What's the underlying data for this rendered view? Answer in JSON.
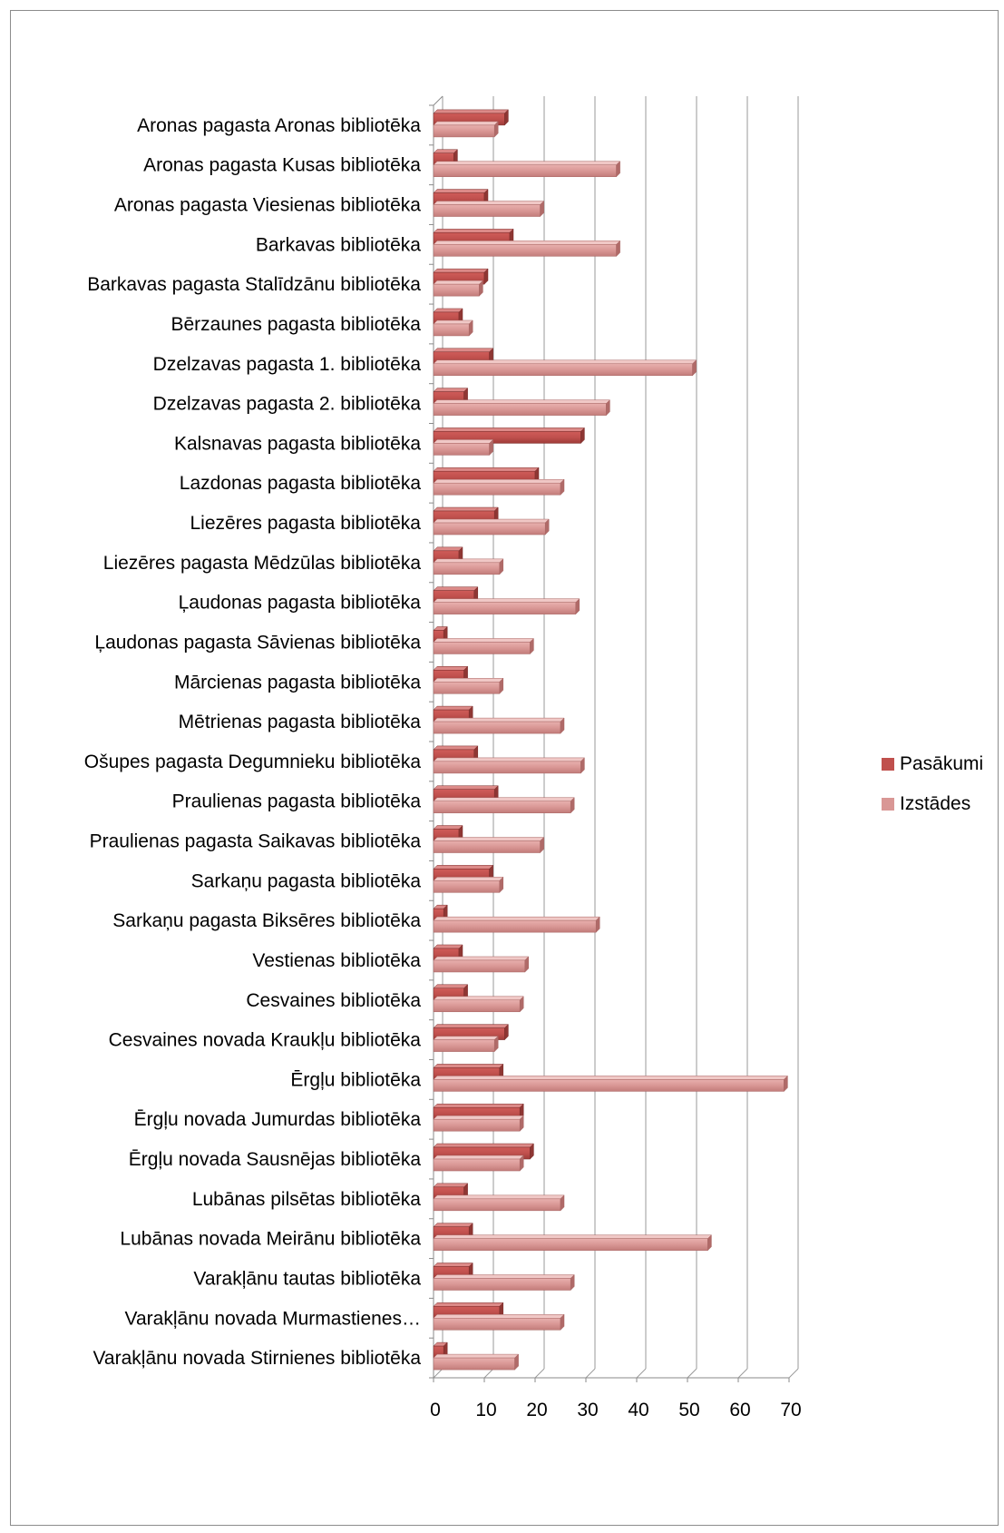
{
  "chart_data": {
    "type": "bar",
    "orientation": "horizontal",
    "categories": [
      "Aronas pagasta Aronas bibliotēka",
      "Aronas pagasta Kusas bibliotēka",
      "Aronas pagasta Viesienas bibliotēka",
      "Barkavas bibliotēka",
      "Barkavas pagasta Stalīdzānu bibliotēka",
      "Bērzaunes pagasta bibliotēka",
      "Dzelzavas pagasta 1. bibliotēka",
      "Dzelzavas pagasta 2. bibliotēka",
      "Kalsnavas pagasta bibliotēka",
      "Lazdonas pagasta bibliotēka",
      "Liezēres pagasta bibliotēka",
      "Liezēres pagasta Mēdzūlas bibliotēka",
      "Ļaudonas pagasta bibliotēka",
      "Ļaudonas pagasta Sāvienas bibliotēka",
      "Mārcienas pagasta bibliotēka",
      "Mētrienas pagasta bibliotēka",
      "Ošupes pagasta Degumnieku bibliotēka",
      "Praulienas pagasta bibliotēka",
      "Praulienas pagasta  Saikavas bibliotēka",
      "Sarkaņu pagasta bibliotēka",
      "Sarkaņu pagasta Biksēres bibliotēka",
      "Vestienas  bibliotēka",
      "Cesvaines bibliotēka",
      "Cesvaines novada Kraukļu bibliotēka",
      "Ērgļu  bibliotēka",
      "Ērgļu novada Jumurdas bibliotēka",
      "Ērgļu novada Sausnējas bibliotēka",
      "Lubānas pilsētas bibliotēka",
      "Lubānas novada Meirānu bibliotēka",
      "Varakļānu  tautas bibliotēka",
      "Varakļānu novada Murmastienes…",
      "Varakļānu novada Stirnienes bibliotēka"
    ],
    "series": [
      {
        "name": "Pasākumi",
        "color": "#c0504d",
        "values": [
          14,
          4,
          10,
          15,
          10,
          5,
          11,
          6,
          29,
          20,
          12,
          5,
          8,
          2,
          6,
          7,
          8,
          12,
          5,
          11,
          2,
          5,
          6,
          14,
          13,
          17,
          19,
          6,
          7,
          7,
          13,
          2
        ]
      },
      {
        "name": "Izstādes",
        "color": "#d99795",
        "values": [
          12,
          36,
          21,
          36,
          9,
          7,
          51,
          34,
          11,
          25,
          22,
          13,
          28,
          19,
          13,
          25,
          29,
          27,
          21,
          13,
          32,
          18,
          17,
          12,
          69,
          17,
          17,
          25,
          54,
          27,
          25,
          16
        ]
      }
    ],
    "xticks": [
      "0",
      "10",
      "20",
      "30",
      "40",
      "50",
      "60",
      "70"
    ],
    "xlim": [
      0,
      70
    ],
    "grid": true,
    "legend_position": "right",
    "title": "",
    "xlabel": "",
    "ylabel": ""
  }
}
